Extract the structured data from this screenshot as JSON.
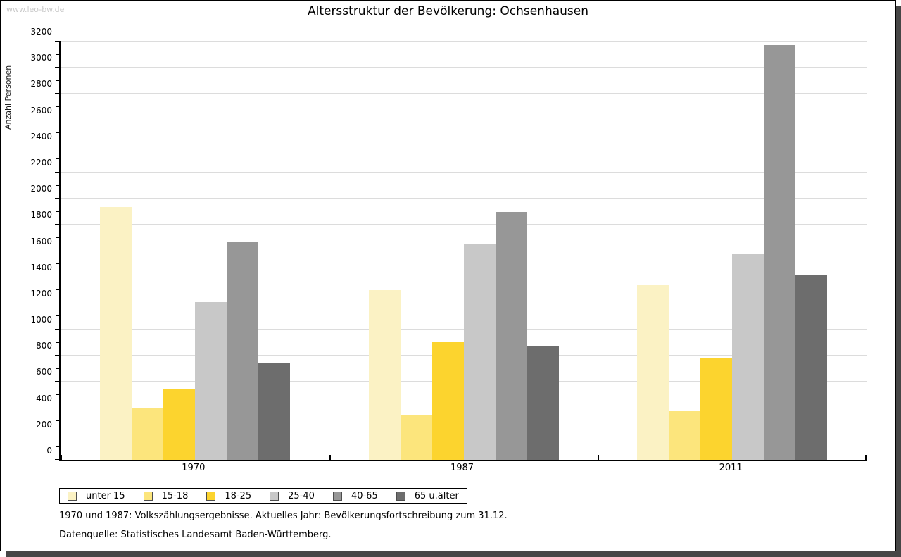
{
  "watermark": "www.leo-bw.de",
  "footnotes": {
    "line1": "1970 und 1987: Volkszählungsergebnisse. Aktuelles Jahr: Bevölkerungsfortschreibung zum 31.12.",
    "line2": "Datenquelle: Statistisches Landesamt Baden-Württemberg."
  },
  "colors": {
    "grid": "#dcdcdc",
    "axis": "#000000",
    "shadow": "#464646",
    "watermark_text": "#c9c9c9"
  },
  "chart_data": {
    "type": "bar",
    "title": "Altersstruktur der Bevölkerung: Ochsenhausen",
    "ylabel": "Anzahl Personen",
    "xlabel": "",
    "categories": [
      "1970",
      "1987",
      "2011"
    ],
    "series": [
      {
        "name": "unter 15",
        "color": "#FBF2C4",
        "values": [
          1930,
          1295,
          1335
        ]
      },
      {
        "name": "15-18",
        "color": "#FCE57C",
        "values": [
          390,
          340,
          375
        ]
      },
      {
        "name": "18-25",
        "color": "#FCD42E",
        "values": [
          540,
          900,
          775
        ]
      },
      {
        "name": "25-40",
        "color": "#C8C8C8",
        "values": [
          1205,
          1645,
          1575
        ]
      },
      {
        "name": "40-65",
        "color": "#979797",
        "values": [
          1665,
          1895,
          3170
        ]
      },
      {
        "name": "65 u.älter",
        "color": "#6D6D6D",
        "values": [
          740,
          870,
          1415
        ]
      }
    ],
    "ylim": [
      0,
      3200
    ],
    "ytick_step": 200,
    "ytick_minor_step": 100,
    "grid": true,
    "legend_position": "bottom-left"
  }
}
